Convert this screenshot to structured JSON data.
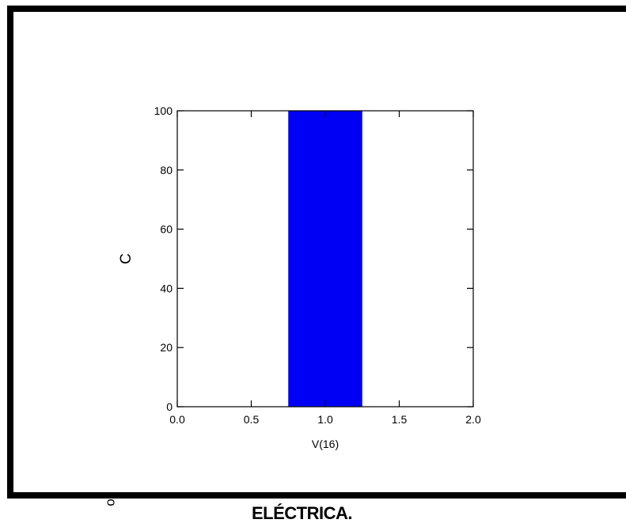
{
  "caption": "ELÉCTRICA.",
  "stray_mark": "o",
  "colors": {
    "bar": "#0000f5",
    "frame": "#000000",
    "background": "#ffffff"
  },
  "chart_data": {
    "type": "bar",
    "bars": [
      {
        "x_start": 0.75,
        "x_end": 1.25,
        "value": 100
      }
    ],
    "xlabel": "V(16)",
    "ylabel": "C",
    "xlim": [
      0.0,
      2.0
    ],
    "ylim": [
      0,
      100
    ],
    "x_ticks": [
      "0.0",
      "0.5",
      "1.0",
      "1.5",
      "2.0"
    ],
    "x_tick_values": [
      0.0,
      0.5,
      1.0,
      1.5,
      2.0
    ],
    "y_ticks": [
      "0",
      "20",
      "40",
      "60",
      "80",
      "100"
    ],
    "y_tick_values": [
      0,
      20,
      40,
      60,
      80,
      100
    ],
    "grid": false
  }
}
